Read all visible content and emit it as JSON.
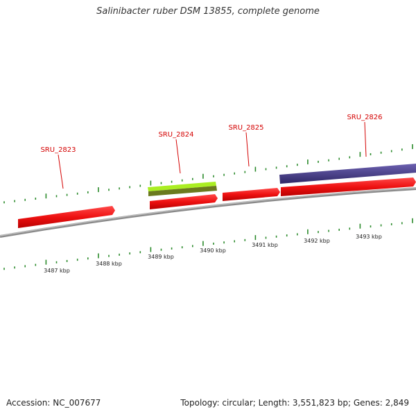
{
  "title": "Salinibacter ruber DSM 13855, complete genome",
  "footer": {
    "accession": "Accession: NC_007677",
    "summary": "Topology: circular; Length: 3,551,823 bp; Genes: 2,849"
  },
  "colors": {
    "backbone": "#8a8a8a",
    "tick": "#2a8a2a",
    "gene_red": "#ee1111",
    "gene_green_light": "#aaee22",
    "gene_green_dark": "#6b7a1e",
    "gene_blue": "#4a3f8f",
    "label_red": "#d40000"
  },
  "scale_labels": [
    "3487 kbp",
    "3488 kbp",
    "3489 kbp",
    "3490 kbp",
    "3491 kbp",
    "3492 kbp",
    "3493 kbp"
  ],
  "genes": [
    {
      "label": "SRU_2823",
      "strand": "+"
    },
    {
      "label": "SRU_2824",
      "strand": "+"
    },
    {
      "label": "SRU_2825",
      "strand": "+"
    },
    {
      "label": "SRU_2826",
      "strand": "+"
    }
  ]
}
